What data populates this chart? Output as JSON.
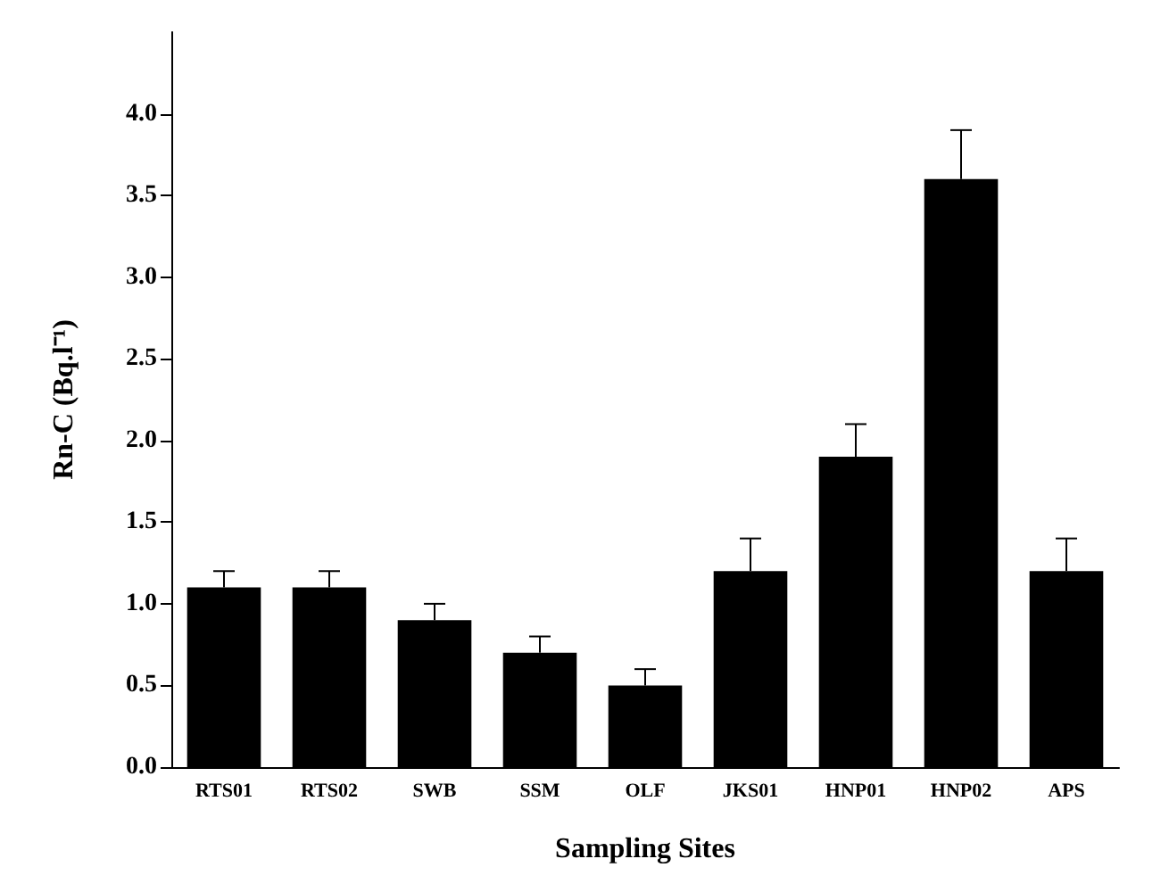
{
  "chart_data": {
    "type": "bar",
    "xlabel": "Sampling Sites",
    "ylabel": "Rn-C (Bq.l⁻¹)",
    "categories": [
      "RTS01",
      "RTS02",
      "SWB",
      "SSM",
      "OLF",
      "JKS01",
      "HNP01",
      "HNP02",
      "APS"
    ],
    "values": [
      1.1,
      1.1,
      0.9,
      0.7,
      0.5,
      1.2,
      1.9,
      3.6,
      1.2
    ],
    "errors": [
      0.1,
      0.1,
      0.1,
      0.1,
      0.1,
      0.2,
      0.2,
      0.3,
      0.2
    ],
    "color": "#000000",
    "ylim": [
      0,
      4.5
    ],
    "yticks": [
      {
        "value": 0,
        "label": "0.0"
      },
      {
        "value": 0.5,
        "label": "0.5"
      },
      {
        "value": 1,
        "label": "1.0"
      },
      {
        "value": 1.5,
        "label": "1.5"
      },
      {
        "value": 2,
        "label": "2.0"
      },
      {
        "value": 2.5,
        "label": "2.5"
      },
      {
        "value": 3,
        "label": "3.0"
      },
      {
        "value": 3.5,
        "label": "3.5"
      },
      {
        "value": 4,
        "label": "4.0"
      }
    ],
    "grid": false
  }
}
